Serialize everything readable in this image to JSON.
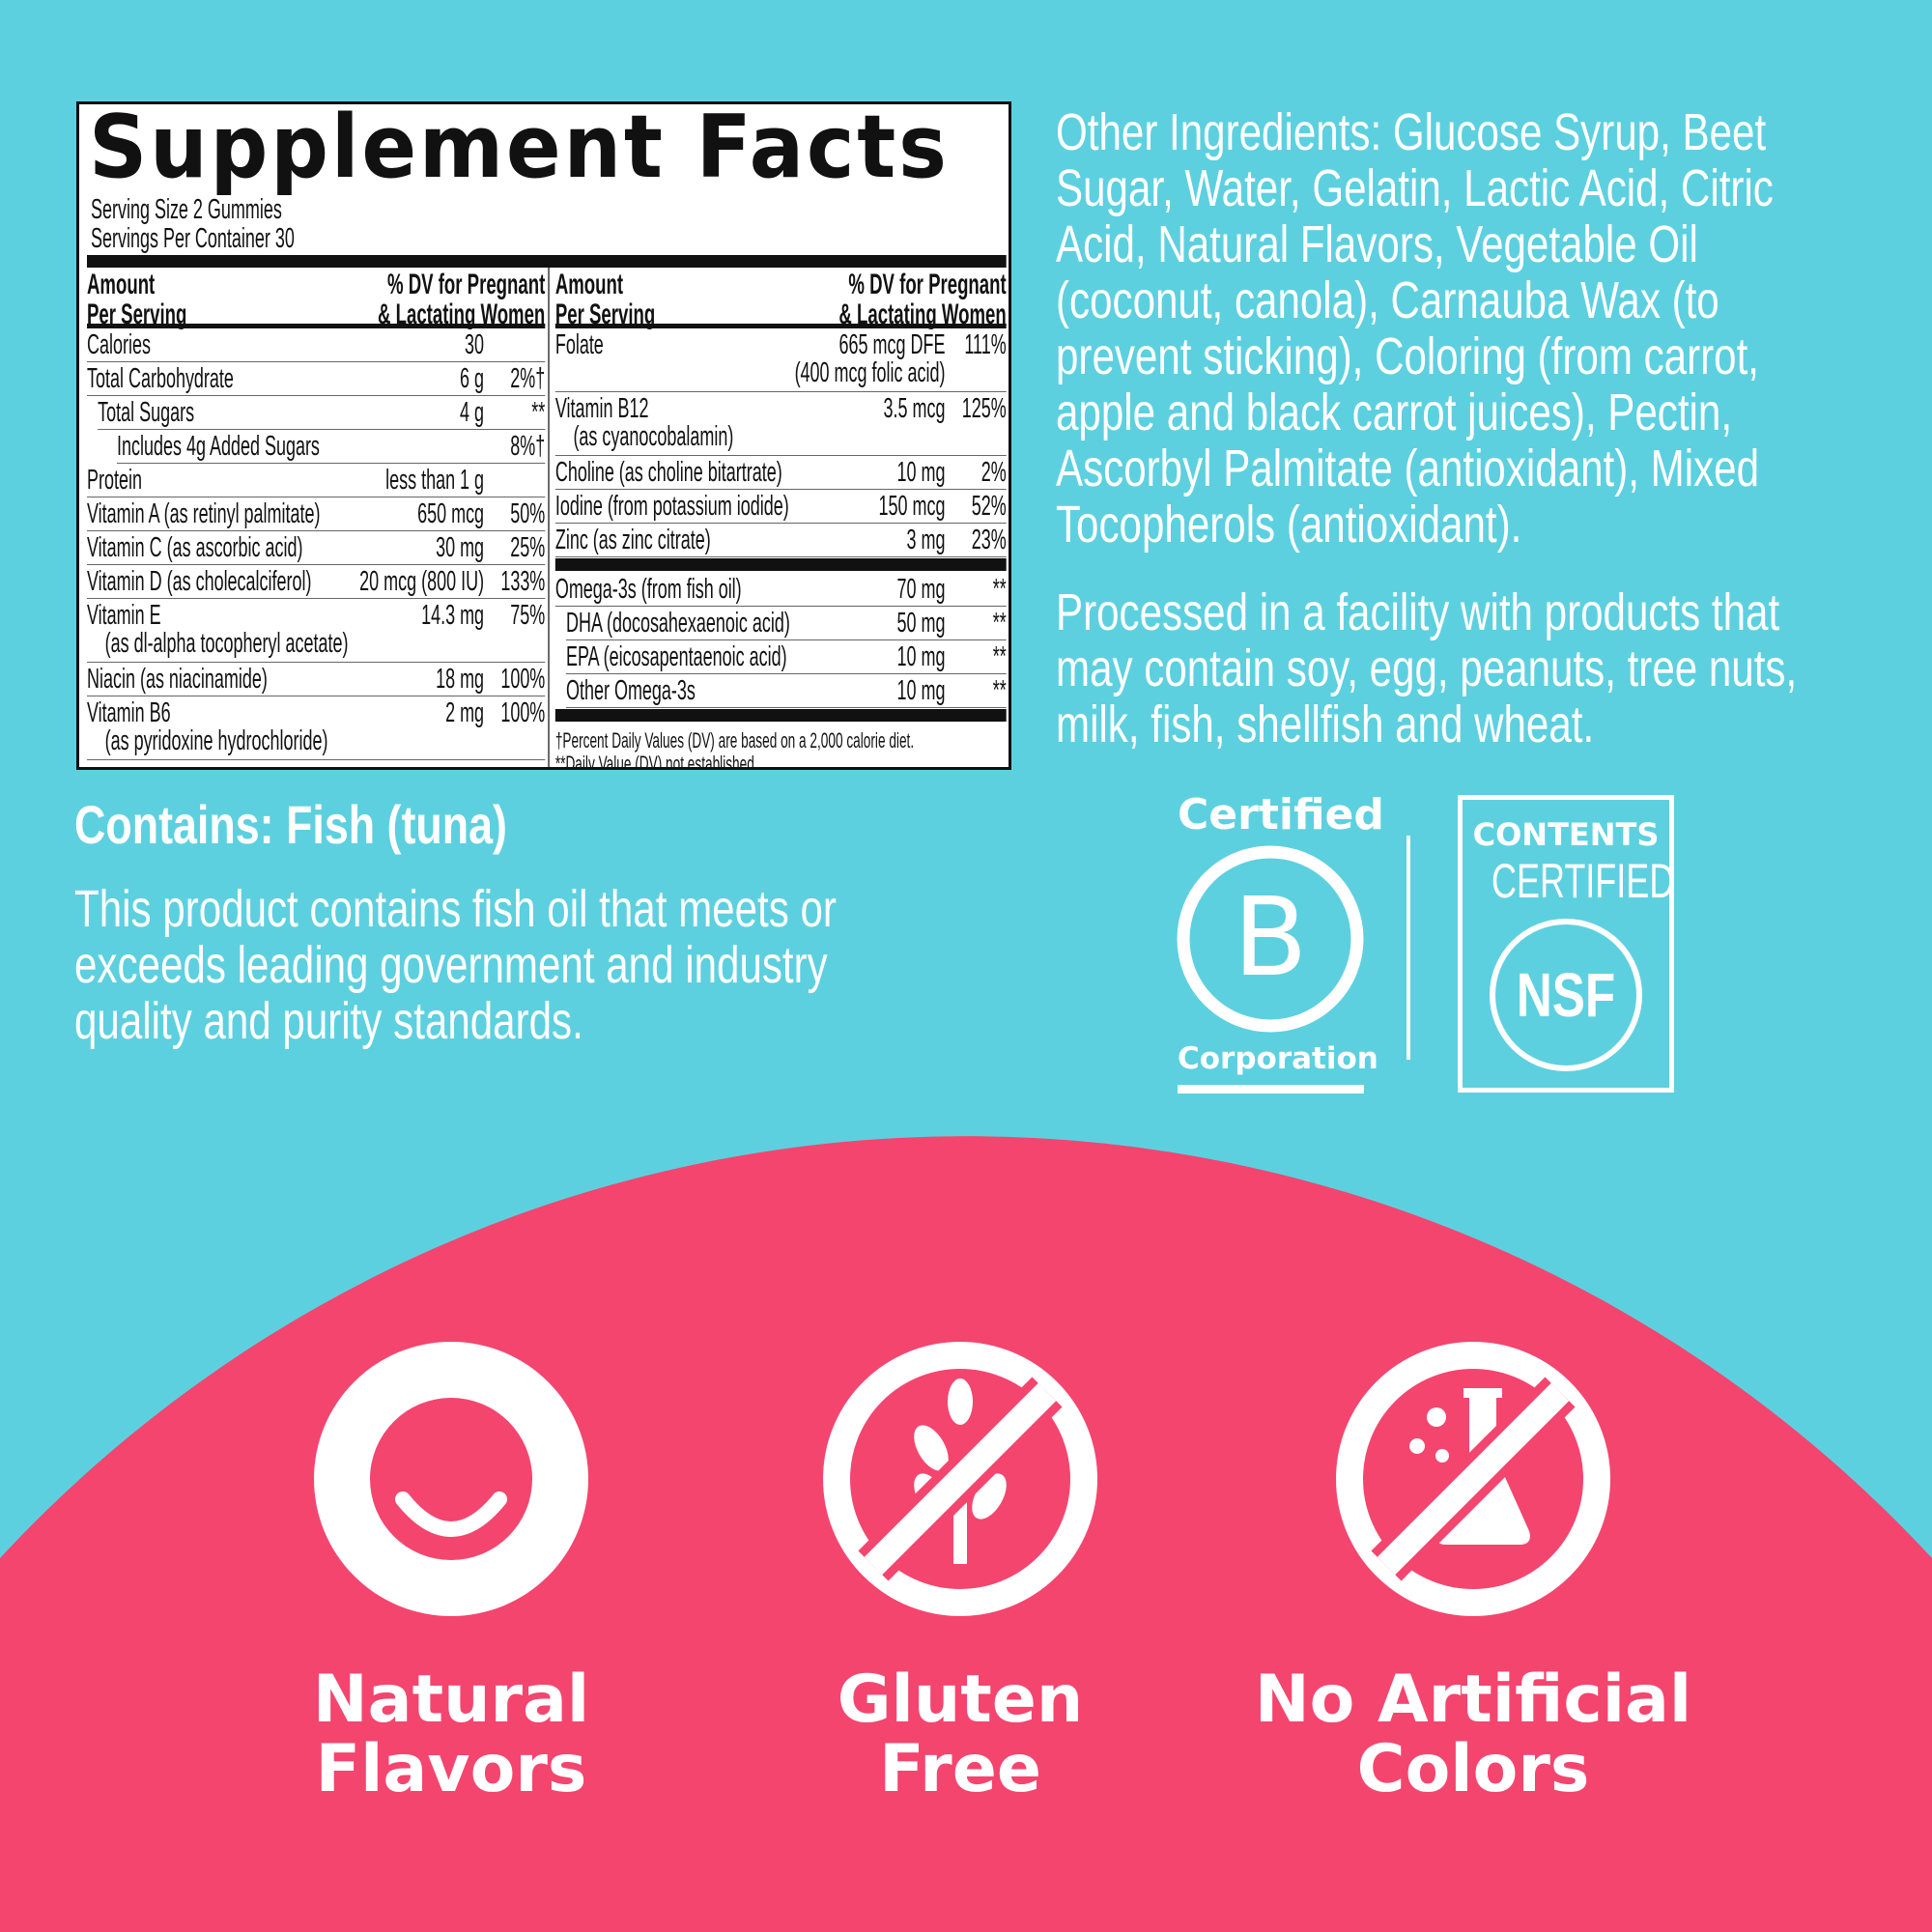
{
  "colors": {
    "background": "#5DD0E0",
    "accent_pink": "#F4456F",
    "label_bg": "#FFFFFF",
    "text": "#111111"
  },
  "label": {
    "title": "Supplement Facts",
    "serving_size": "Serving Size 2 Gummies",
    "servings_per_container": "Servings Per Container 30",
    "header": {
      "amount_1": "Amount",
      "amount_2": "Per Serving",
      "dv_1": "% DV for Pregnant",
      "dv_2": "& Lactating Women"
    },
    "left_rows": [
      {
        "name": "Calories",
        "amount": "30",
        "dv": ""
      },
      {
        "name": "Total Carbohydrate",
        "amount": "6 g",
        "dv": "2%†"
      },
      {
        "name": "Total Sugars",
        "amount": "4 g",
        "dv": "**"
      },
      {
        "name": "Includes 4g Added Sugars",
        "amount": "",
        "dv": "8%†"
      },
      {
        "name": "Protein",
        "amount": "less than 1 g",
        "dv": ""
      },
      {
        "name": "Vitamin A (as retinyl palmitate)",
        "amount": "650 mcg",
        "dv": "50%"
      },
      {
        "name": "Vitamin C (as ascorbic acid)",
        "amount": "30 mg",
        "dv": "25%"
      },
      {
        "name": "Vitamin D (as cholecalciferol)",
        "amount": "20 mcg (800 IU)",
        "dv": "133%"
      },
      {
        "name": "Vitamin E",
        "sub": "(as dl-alpha tocopheryl acetate)",
        "amount": "14.3 mg",
        "dv": "75%"
      },
      {
        "name": "Niacin (as niacinamide)",
        "amount": "18 mg",
        "dv": "100%"
      },
      {
        "name": "Vitamin B6",
        "sub": "(as pyridoxine hydrochloride)",
        "amount": "2 mg",
        "dv": "100%"
      }
    ],
    "right_rows": [
      {
        "name": "Folate",
        "amount": "665 mcg DFE",
        "amount_sub": "(400 mcg folic acid)",
        "dv": "111%"
      },
      {
        "name": "Vitamin B12",
        "sub": "(as cyanocobalamin)",
        "amount": "3.5 mcg",
        "dv": "125%"
      },
      {
        "name": "Choline (as choline bitartrate)",
        "amount": "10 mg",
        "dv": "2%"
      },
      {
        "name": "Iodine (from potassium iodide)",
        "amount": "150 mcg",
        "dv": "52%"
      },
      {
        "name": "Zinc (as zinc citrate)",
        "amount": "3 mg",
        "dv": "23%"
      },
      {
        "name": "Omega-3s (from fish oil)",
        "amount": "70 mg",
        "dv": "**"
      },
      {
        "name": "DHA (docosahexaenoic acid)",
        "amount": "50 mg",
        "dv": "**"
      },
      {
        "name": "EPA (eicosapentaenoic acid)",
        "amount": "10 mg",
        "dv": "**"
      },
      {
        "name": "Other Omega-3s",
        "amount": "10 mg",
        "dv": "**"
      }
    ],
    "footnote_1": "†Percent Daily Values (DV) are based on a 2,000 calorie diet.",
    "footnote_2": "**Daily Value (DV) not established."
  },
  "other_ingredients": [
    "Other Ingredients: Glucose Syrup, Beet",
    "Sugar, Water, Gelatin, Lactic Acid, Citric",
    "Acid, Natural Flavors, Vegetable Oil",
    "(coconut, canola), Carnauba Wax (to",
    "prevent sticking), Coloring (from carrot,",
    "apple and black carrot juices), Pectin,",
    "Ascorbyl Palmitate (antioxidant), Mixed",
    "Tocopherols (antioxidant)."
  ],
  "allergen_facility": [
    "Processed in a facility with products that",
    "may contain soy, egg, peanuts, tree nuts,",
    "milk, fish, shellfish and wheat."
  ],
  "contains": "Contains: Fish (tuna)",
  "fish_oil_statement": [
    "This product contains fish oil that meets or",
    "exceeds leading government and industry",
    "quality and purity standards."
  ],
  "bcorp": {
    "top": "Certified",
    "letter": "B",
    "bottom": "Corporation"
  },
  "nsf": {
    "line1": "CONTENTS",
    "line2": "CERTIFIED",
    "mark": "NSF"
  },
  "features": [
    {
      "icon": "smile-icon",
      "line1": "Natural",
      "line2": "Flavors"
    },
    {
      "icon": "no-wheat-icon",
      "line1": "Gluten",
      "line2": "Free"
    },
    {
      "icon": "no-flask-icon",
      "line1": "No Artificial",
      "line2": "Colors"
    }
  ]
}
